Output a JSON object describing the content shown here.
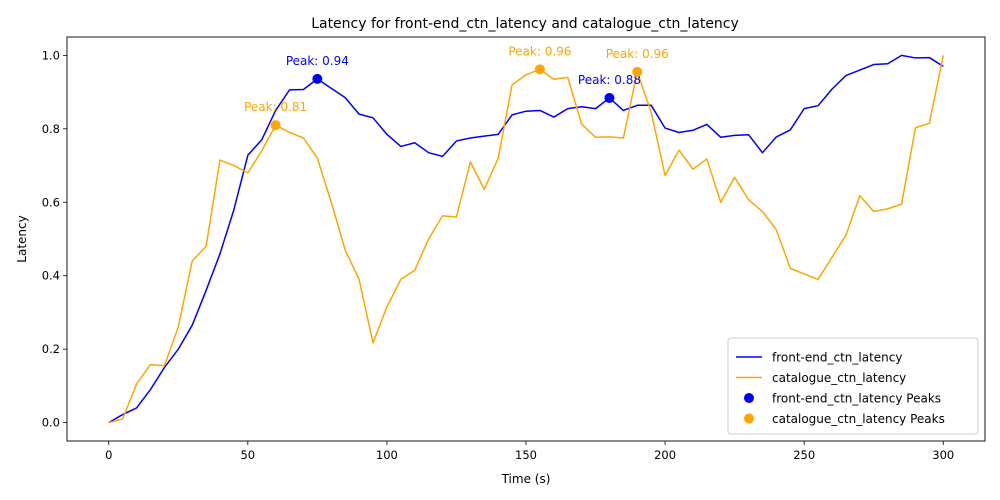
{
  "chart_data": {
    "type": "line",
    "title": "Latency for front-end_ctn_latency and catalogue_ctn_latency",
    "xlabel": "Time (s)",
    "ylabel": "Latency",
    "xlim": [
      -15,
      315
    ],
    "ylim": [
      -0.05,
      1.05
    ],
    "xticks": [
      0,
      50,
      100,
      150,
      200,
      250,
      300
    ],
    "yticks": [
      0.0,
      0.2,
      0.4,
      0.6,
      0.8,
      1.0
    ],
    "xtick_labels": [
      "0",
      "50",
      "100",
      "150",
      "200",
      "250",
      "300"
    ],
    "ytick_labels": [
      "0.0",
      "0.2",
      "0.4",
      "0.6",
      "0.8",
      "1.0"
    ],
    "grid": false,
    "legend_position": "lower right",
    "x": [
      0,
      5,
      10,
      15,
      20,
      25,
      30,
      35,
      40,
      45,
      50,
      55,
      60,
      65,
      70,
      75,
      80,
      85,
      90,
      95,
      100,
      105,
      110,
      115,
      120,
      125,
      130,
      135,
      140,
      145,
      150,
      155,
      160,
      165,
      170,
      175,
      180,
      185,
      190,
      195,
      200,
      205,
      210,
      215,
      220,
      225,
      230,
      235,
      240,
      245,
      250,
      255,
      260,
      265,
      270,
      275,
      280,
      285,
      290,
      295,
      300
    ],
    "series": [
      {
        "name": "front-end_ctn_latency",
        "color": "#0000ff",
        "values": [
          0.0,
          0.022,
          0.04,
          0.09,
          0.15,
          0.2,
          0.265,
          0.36,
          0.46,
          0.58,
          0.728,
          0.77,
          0.85,
          0.906,
          0.907,
          0.936,
          0.91,
          0.885,
          0.84,
          0.83,
          0.785,
          0.752,
          0.762,
          0.735,
          0.725,
          0.767,
          0.775,
          0.78,
          0.785,
          0.838,
          0.848,
          0.85,
          0.832,
          0.855,
          0.86,
          0.855,
          0.884,
          0.85,
          0.864,
          0.864,
          0.802,
          0.79,
          0.796,
          0.812,
          0.777,
          0.782,
          0.784,
          0.735,
          0.778,
          0.797,
          0.855,
          0.863,
          0.908,
          0.945,
          0.96,
          0.975,
          0.977,
          1.0,
          0.993,
          0.994,
          0.97
        ]
      },
      {
        "name": "catalogue_ctn_latency",
        "color": "#ffa500",
        "values": [
          0.0,
          0.01,
          0.105,
          0.158,
          0.155,
          0.26,
          0.44,
          0.48,
          0.715,
          0.7,
          0.68,
          0.74,
          0.81,
          0.79,
          0.775,
          0.72,
          0.6,
          0.47,
          0.39,
          0.217,
          0.315,
          0.39,
          0.415,
          0.5,
          0.563,
          0.56,
          0.71,
          0.635,
          0.72,
          0.92,
          0.947,
          0.962,
          0.935,
          0.94,
          0.813,
          0.777,
          0.778,
          0.775,
          0.955,
          0.845,
          0.673,
          0.742,
          0.69,
          0.718,
          0.6,
          0.668,
          0.607,
          0.575,
          0.525,
          0.42,
          0.405,
          0.39,
          0.45,
          0.51,
          0.618,
          0.575,
          0.582,
          0.595,
          0.803,
          0.815,
          1.0
        ]
      }
    ],
    "peaks": [
      {
        "series": "front-end_ctn_latency",
        "x": 75,
        "y": 0.936,
        "label": "Peak: 0.94",
        "color": "#0000ff",
        "label_position": "above"
      },
      {
        "series": "front-end_ctn_latency",
        "x": 180,
        "y": 0.884,
        "label": "Peak: 0.88",
        "color": "#0000ff",
        "label_position": "above"
      },
      {
        "series": "catalogue_ctn_latency",
        "x": 60,
        "y": 0.81,
        "label": "Peak: 0.81",
        "color": "#ffa500",
        "label_position": "above"
      },
      {
        "series": "catalogue_ctn_latency",
        "x": 155,
        "y": 0.962,
        "label": "Peak: 0.96",
        "color": "#ffa500",
        "label_position": "above"
      },
      {
        "series": "catalogue_ctn_latency",
        "x": 190,
        "y": 0.955,
        "label": "Peak: 0.96",
        "color": "#ffa500",
        "label_position": "above"
      }
    ],
    "legend": [
      {
        "label": "front-end_ctn_latency",
        "kind": "line",
        "color": "#0000ff"
      },
      {
        "label": "catalogue_ctn_latency",
        "kind": "line",
        "color": "#ffa500"
      },
      {
        "label": "front-end_ctn_latency Peaks",
        "kind": "marker",
        "color": "#0000ff"
      },
      {
        "label": "catalogue_ctn_latency Peaks",
        "kind": "marker",
        "color": "#ffa500"
      }
    ]
  }
}
